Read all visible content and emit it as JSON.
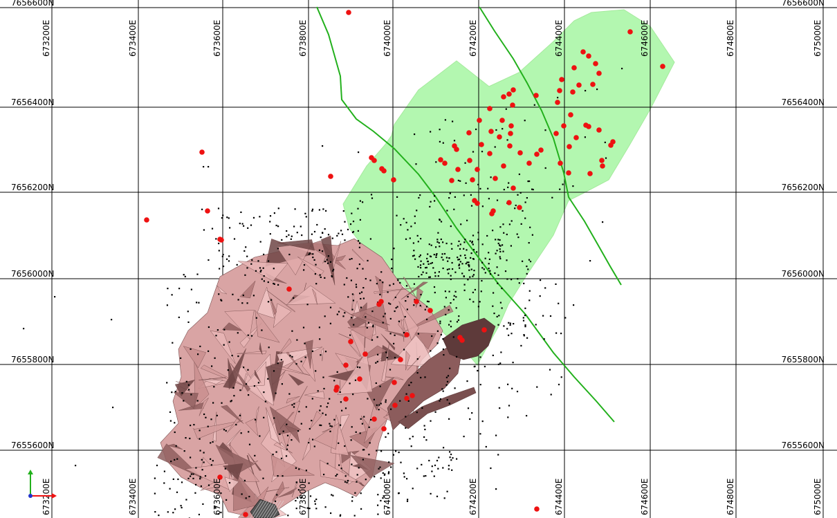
{
  "map": {
    "easting_labels": [
      "673200E",
      "673400E",
      "673600E",
      "673800E",
      "674000E",
      "674200E",
      "674400E",
      "674600E",
      "674800E",
      "675000E"
    ],
    "northing_labels": [
      "7656600N",
      "7656400N",
      "7656200N",
      "7656000N",
      "7655800N",
      "7655600N"
    ],
    "axes_icon": "xyz-axes-icon",
    "colors": {
      "grid_line": "#000000",
      "background": "#ffffff",
      "green_zone_fill": "#b3f7b0",
      "surface_fill": "#d9a4a4",
      "surface_dark": "#5e3a3a",
      "fault_line": "#22b01c",
      "red_points": "#ee1111",
      "black_points": "#000000"
    }
  }
}
